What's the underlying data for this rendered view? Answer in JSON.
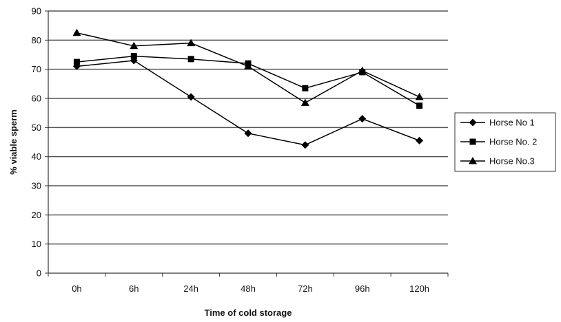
{
  "chart_data": {
    "type": "line",
    "title": "",
    "xlabel": "Time of cold storage",
    "ylabel": "% viable sperm",
    "ylim": [
      0,
      90
    ],
    "yticks": [
      "0",
      "10",
      "20",
      "30",
      "40",
      "50",
      "60",
      "70",
      "80",
      "90"
    ],
    "categories": [
      "0h",
      "6h",
      "24h",
      "48h",
      "72h",
      "96h",
      "120h"
    ],
    "grid": true,
    "legend_position": "right",
    "series": [
      {
        "name": "Horse No 1",
        "marker": "diamond",
        "color": "#000000",
        "values": [
          71,
          73,
          60.5,
          48,
          44,
          53,
          45.5
        ]
      },
      {
        "name": "Horse No. 2",
        "marker": "square",
        "color": "#000000",
        "values": [
          72.5,
          74.5,
          73.5,
          72,
          63.5,
          69,
          57.5
        ]
      },
      {
        "name": "Horse No.3",
        "marker": "triangle",
        "color": "#000000",
        "values": [
          82.5,
          78,
          79,
          71,
          58.5,
          69.5,
          60.5
        ]
      }
    ]
  }
}
